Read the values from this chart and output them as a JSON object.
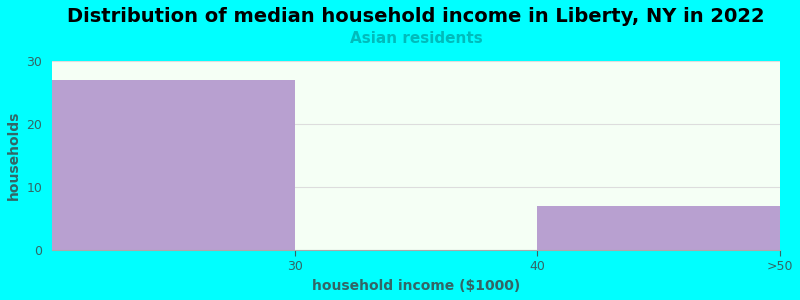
{
  "title": "Distribution of median household income in Liberty, NY in 2022",
  "subtitle": "Asian residents",
  "subtitle_color": "#00bbbb",
  "xlabel": "household income ($1000)",
  "ylabel": "households",
  "background_color": "#00ffff",
  "plot_bg_color": "#f5fff5",
  "bar_color": "#b8a0d0",
  "categories": [
    "30",
    "40",
    ">50"
  ],
  "values": [
    27,
    0,
    7
  ],
  "ylim": [
    0,
    30
  ],
  "yticks": [
    0,
    10,
    20,
    30
  ],
  "grid_color": "#dddddd",
  "title_fontsize": 14,
  "subtitle_fontsize": 11,
  "axis_label_fontsize": 10,
  "tick_fontsize": 9,
  "tick_color": "#336666"
}
